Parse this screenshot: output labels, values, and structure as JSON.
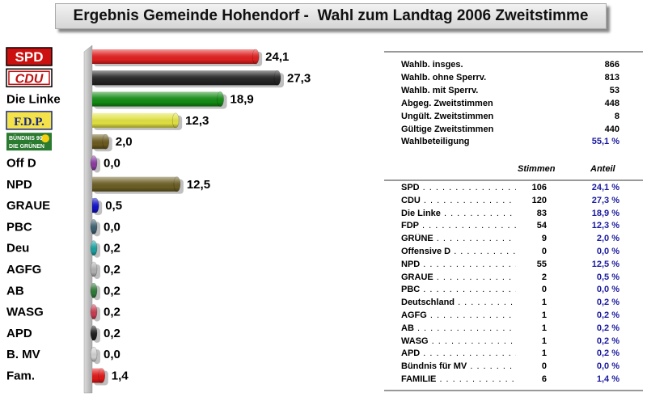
{
  "title": "Ergebnis Gemeinde Hohendorf -  Wahl zum Landtag 2006 Zweitstimme",
  "chart_data": {
    "type": "bar",
    "orientation": "horizontal",
    "title": "Ergebnis Gemeinde Hohendorf -  Wahl zum Landtag 2006 Zweitstimme",
    "categories": [
      "SPD",
      "CDU",
      "Die Linke",
      "F.D.P.",
      "BÜNDNIS 90 DIE GRÜNEN",
      "Off D",
      "NPD",
      "GRAUE",
      "PBC",
      "Deu",
      "AGFG",
      "AB",
      "WASG",
      "APD",
      "B. MV",
      "Fam."
    ],
    "values": [
      24.1,
      27.3,
      18.9,
      12.3,
      2.0,
      0.0,
      12.5,
      0.5,
      0.0,
      0.2,
      0.2,
      0.2,
      0.2,
      0.2,
      0.0,
      1.4
    ],
    "value_labels": [
      "24,1",
      "27,3",
      "18,9",
      "12,3",
      "2,0",
      "0,0",
      "12,5",
      "0,5",
      "0,0",
      "0,2",
      "0,2",
      "0,2",
      "0,2",
      "0,2",
      "0,0",
      "1,4"
    ],
    "colors": [
      "#e02020",
      "#262626",
      "#148c14",
      "#e0e040",
      "#6b5a1e",
      "#8a3aa0",
      "#6b5e24",
      "#1212c8",
      "#3c6070",
      "#1aa0a0",
      "#b0b0b0",
      "#2e7a36",
      "#c83c50",
      "#202020",
      "#d0d0d0",
      "#e01818"
    ],
    "label_styles": [
      "logo",
      "logo",
      "text",
      "logo",
      "logo",
      "text",
      "text",
      "text",
      "text",
      "text",
      "text",
      "text",
      "text",
      "text",
      "text",
      "text"
    ],
    "xlim": [
      0,
      27.3
    ]
  },
  "summary": {
    "rows": [
      {
        "label": "Wahlb. insges.",
        "value": "866"
      },
      {
        "label": "Wahlb. ohne Sperrv.",
        "value": "813"
      },
      {
        "label": "Wahlb. mit Sperrv.",
        "value": "53"
      },
      {
        "label": "Abgeg. Zweitstimmen",
        "value": "448"
      },
      {
        "label": "Ungült. Zweitstimmen",
        "value": "8"
      },
      {
        "label": "Gültige Zweitstimmen",
        "value": "440"
      }
    ],
    "turnout_label": "Wahlbeteiligung",
    "turnout_value": "55,1 %"
  },
  "results": {
    "stimmen_header": "Stimmen",
    "anteil_header": "Anteil",
    "rows": [
      {
        "party": "SPD",
        "stimmen": "106",
        "anteil": "24,1 %"
      },
      {
        "party": "CDU",
        "stimmen": "120",
        "anteil": "27,3 %"
      },
      {
        "party": "Die Linke",
        "stimmen": "83",
        "anteil": "18,9 %"
      },
      {
        "party": "FDP",
        "stimmen": "54",
        "anteil": "12,3 %"
      },
      {
        "party": "GRÜNE",
        "stimmen": "9",
        "anteil": "2,0 %"
      },
      {
        "party": "Offensive D",
        "stimmen": "0",
        "anteil": "0,0 %"
      },
      {
        "party": "NPD",
        "stimmen": "55",
        "anteil": "12,5 %"
      },
      {
        "party": "GRAUE",
        "stimmen": "2",
        "anteil": "0,5 %"
      },
      {
        "party": "PBC",
        "stimmen": "0",
        "anteil": "0,0 %"
      },
      {
        "party": "Deutschland",
        "stimmen": "1",
        "anteil": "0,2 %"
      },
      {
        "party": "AGFG",
        "stimmen": "1",
        "anteil": "0,2 %"
      },
      {
        "party": "AB",
        "stimmen": "1",
        "anteil": "0,2 %"
      },
      {
        "party": "WASG",
        "stimmen": "1",
        "anteil": "0,2 %"
      },
      {
        "party": "APD",
        "stimmen": "1",
        "anteil": "0,2 %"
      },
      {
        "party": "Bündnis für MV",
        "stimmen": "0",
        "anteil": "0,0 %"
      },
      {
        "party": "FAMILIE",
        "stimmen": "6",
        "anteil": "1,4 %"
      }
    ]
  }
}
